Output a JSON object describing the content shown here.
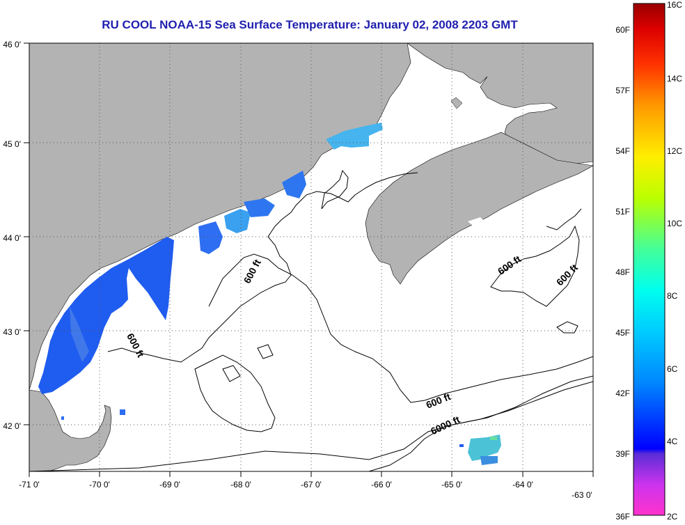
{
  "title": "RU COOL  NOAA-15  Sea Surface Temperature:  January 02, 2008 2203 GMT",
  "axes": {
    "lon_ticks": [
      "-71 0'",
      "-70 0'",
      "-69 0'",
      "-68 0'",
      "-67 0'",
      "-66 0'",
      "-65 0'",
      "-64 0'",
      "-63 0'"
    ],
    "lat_ticks": [
      "46 0'",
      "45 0'",
      "44 0'",
      "43 0'",
      "42 0'"
    ]
  },
  "contour_labels": [
    "600 ft",
    "600 ft",
    "600 ft",
    "600 ft",
    "600 ft",
    "6000 ft"
  ],
  "colorbar": {
    "celsius": [
      "16C",
      "14C",
      "12C",
      "10C",
      "8C",
      "6C",
      "4C",
      "2C"
    ],
    "fahrenheit": [
      "60F",
      "57F",
      "54F",
      "51F",
      "48F",
      "45F",
      "42F",
      "39F",
      "36F"
    ]
  },
  "colors": {
    "land": "#b3b3b3",
    "title": "#1f1fb0",
    "sst_main": "#1f5cf0",
    "sst_light": "#46b4ee"
  }
}
